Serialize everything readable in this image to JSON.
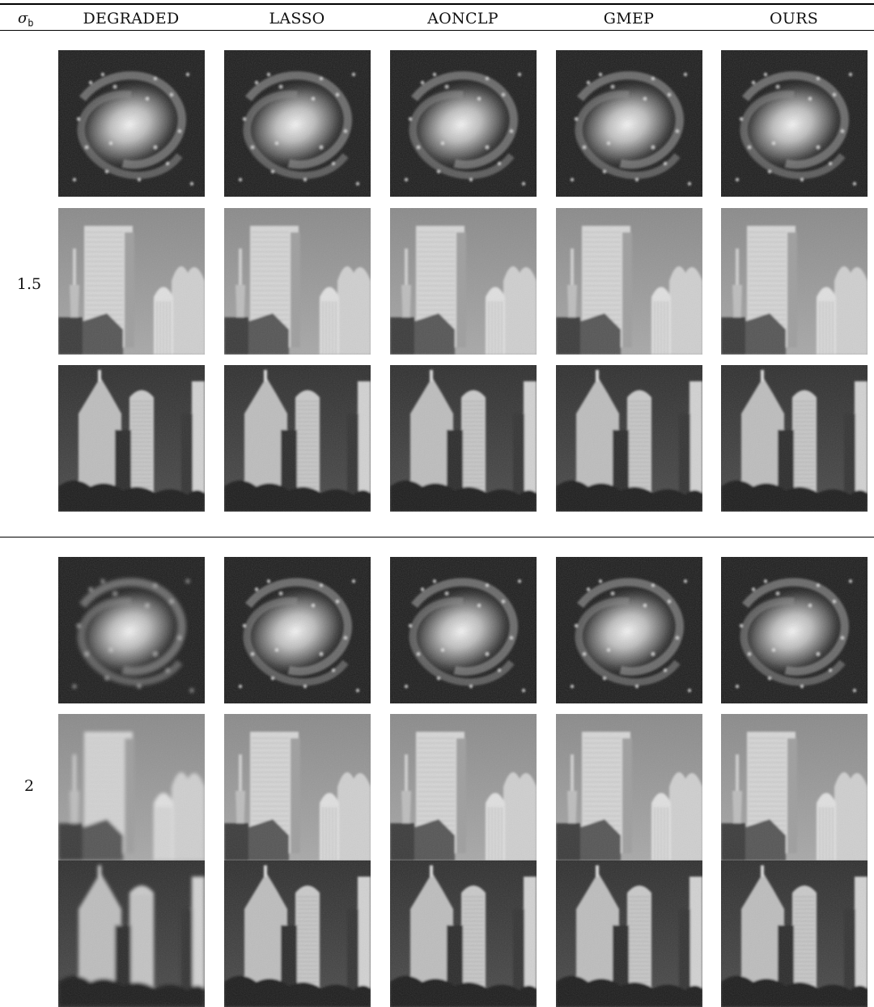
{
  "header": {
    "sigma_label": "σ",
    "sigma_sub": "b",
    "columns": [
      "DEGRADED",
      "LASSO",
      "AONCLP",
      "GMEP",
      "OURS"
    ]
  },
  "groups": [
    {
      "sigma": "1.5",
      "images": [
        "galaxy",
        "buildings-1",
        "buildings-2"
      ]
    },
    {
      "sigma": "2",
      "images": [
        "galaxy",
        "buildings-1",
        "buildings-2"
      ]
    }
  ]
}
